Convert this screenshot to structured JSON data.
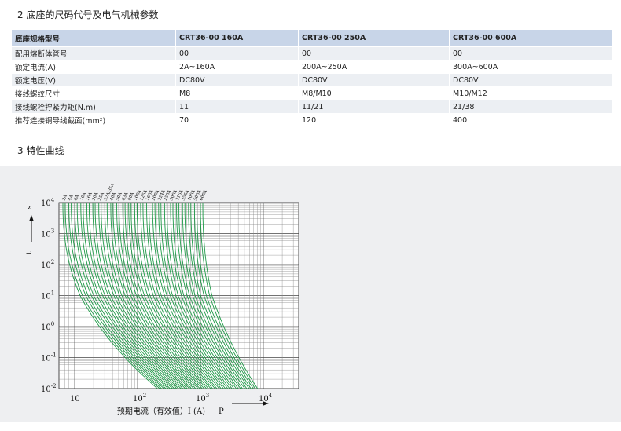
{
  "section2": {
    "title": "2 底座的尺码代号及电气机械参数"
  },
  "table": {
    "header": [
      "底座规格型号",
      "CRT36-00 160A",
      "CRT36-00 250A",
      "CRT36-00 600A"
    ],
    "rows": [
      [
        "配用熔断体管号",
        "00",
        "00",
        "00"
      ],
      [
        "额定电流(A)",
        "2A~160A",
        "200A~250A",
        "300A~600A"
      ],
      [
        "额定电压(V)",
        "DC80V",
        "DC80V",
        "DC80V"
      ],
      [
        "接线螺纹尺寸",
        "M8",
        "M8/M10",
        "M10/M12"
      ],
      [
        "接线螺栓拧紧力矩(N.m)",
        "11",
        "11/21",
        "21/38"
      ],
      [
        "推荐连接铜导线截面(mm²)",
        "70",
        "120",
        "400"
      ]
    ]
  },
  "section3": {
    "title": "3 特性曲线"
  },
  "figure": {
    "y_axis_title": "t",
    "y_unit": "s",
    "x_axis_title": "预期电流（有效值）I (A)",
    "x_note": "P",
    "y_ticks": [
      {
        "base": "10",
        "exp": "4"
      },
      {
        "base": "10",
        "exp": "3"
      },
      {
        "base": "10",
        "exp": "2"
      },
      {
        "base": "10",
        "exp": "1"
      },
      {
        "base": "10",
        "exp": "0"
      },
      {
        "base": "10",
        "exp": "-1"
      },
      {
        "base": "10",
        "exp": "-2"
      }
    ],
    "x_ticks": [
      {
        "base": "10",
        "exp": ""
      },
      {
        "base": "10",
        "exp": "2"
      },
      {
        "base": "10",
        "exp": "3"
      },
      {
        "base": "10",
        "exp": "4"
      }
    ],
    "curve_labels": [
      "2A",
      "4A",
      "6A",
      "10A",
      "16A",
      "20A",
      "25A",
      "32A/35A",
      "40A",
      "50A",
      "63A",
      "80A",
      "100A",
      "125A",
      "160A",
      "200A",
      "224A",
      "250A",
      "300A",
      "315A",
      "355A",
      "400A",
      "500A",
      "600A"
    ]
  }
}
